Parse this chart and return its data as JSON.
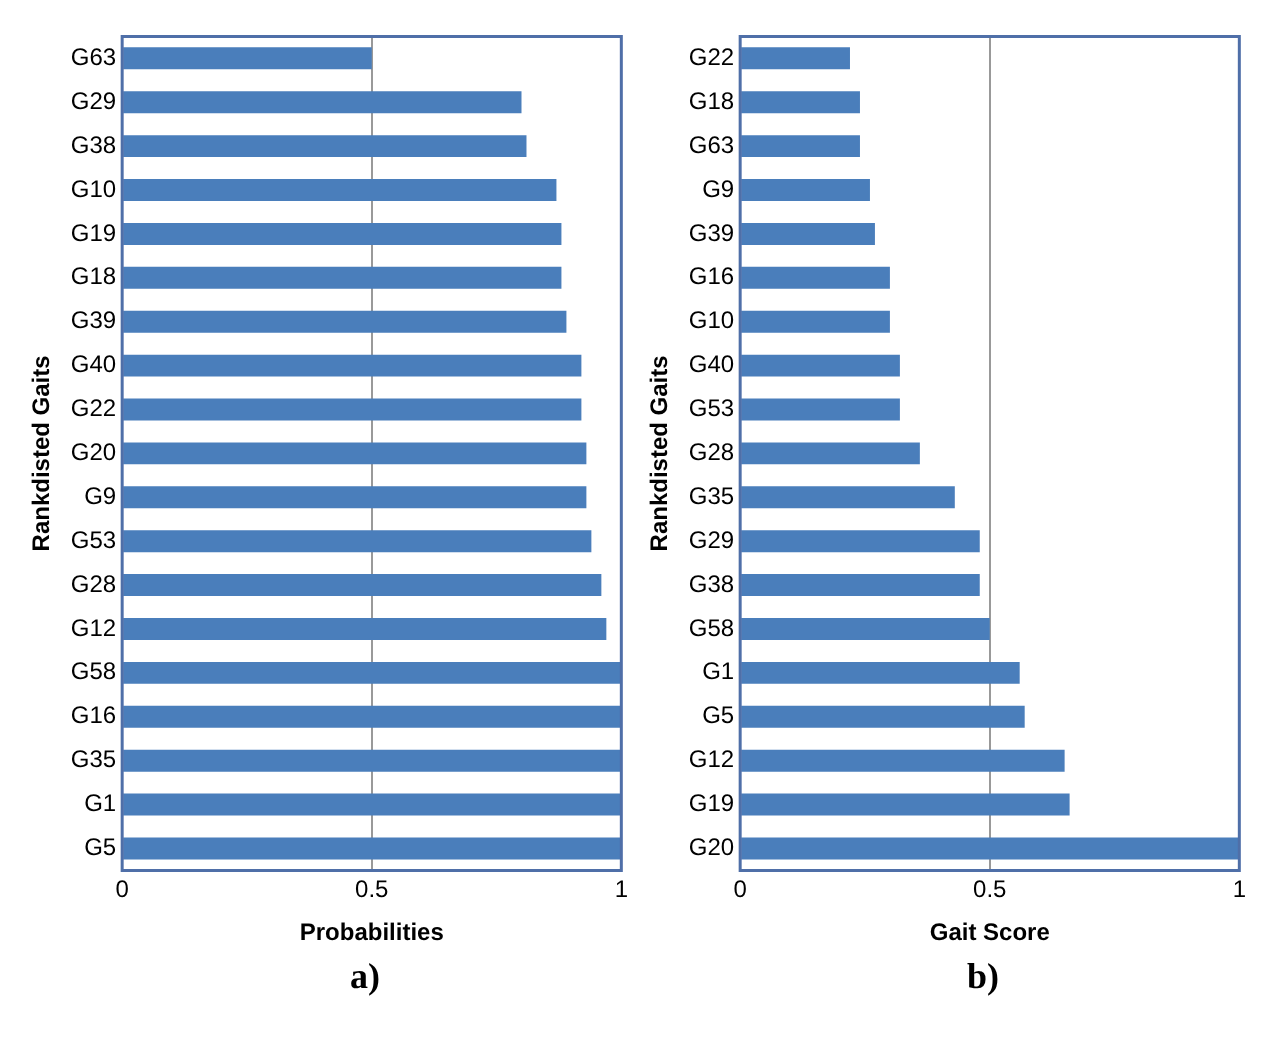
{
  "chart_data": [
    {
      "type": "bar",
      "orientation": "horizontal",
      "categories": [
        "G63",
        "G29",
        "G38",
        "G10",
        "G19",
        "G18",
        "G39",
        "G40",
        "G22",
        "G20",
        "G9",
        "G53",
        "G28",
        "G12",
        "G58",
        "G16",
        "G35",
        "G1",
        "G5"
      ],
      "values": [
        0.5,
        0.8,
        0.81,
        0.87,
        0.88,
        0.88,
        0.89,
        0.92,
        0.92,
        0.93,
        0.93,
        0.94,
        0.96,
        0.97,
        1,
        1,
        1,
        1,
        1
      ],
      "color": "#4a7ebb",
      "xlim": [
        0,
        1
      ],
      "xticks": [
        0,
        0.5,
        1
      ],
      "grid": "x",
      "xlabel": "Probabilities",
      "ylabel": "Rankdisted Gaits",
      "annotations": [
        "a)"
      ]
    },
    {
      "type": "bar",
      "orientation": "horizontal",
      "categories": [
        "G22",
        "G18",
        "G63",
        "G9",
        "G39",
        "G16",
        "G10",
        "G40",
        "G53",
        "G28",
        "G35",
        "G29",
        "G38",
        "G58",
        "G1",
        "G5",
        "G12",
        "G19",
        "G20"
      ],
      "values": [
        0.22,
        0.24,
        0.24,
        0.26,
        0.27,
        0.3,
        0.3,
        0.32,
        0.32,
        0.36,
        0.43,
        0.48,
        0.48,
        0.5,
        0.56,
        0.57,
        0.65,
        0.66,
        1
      ],
      "color": "#4a7ebb",
      "xlim": [
        0,
        1
      ],
      "xticks": [
        0,
        0.5,
        1
      ],
      "grid": "x",
      "xlabel": "Gait Score",
      "ylabel": "Rankdisted Gaits",
      "annotations": [
        "b)"
      ]
    }
  ]
}
